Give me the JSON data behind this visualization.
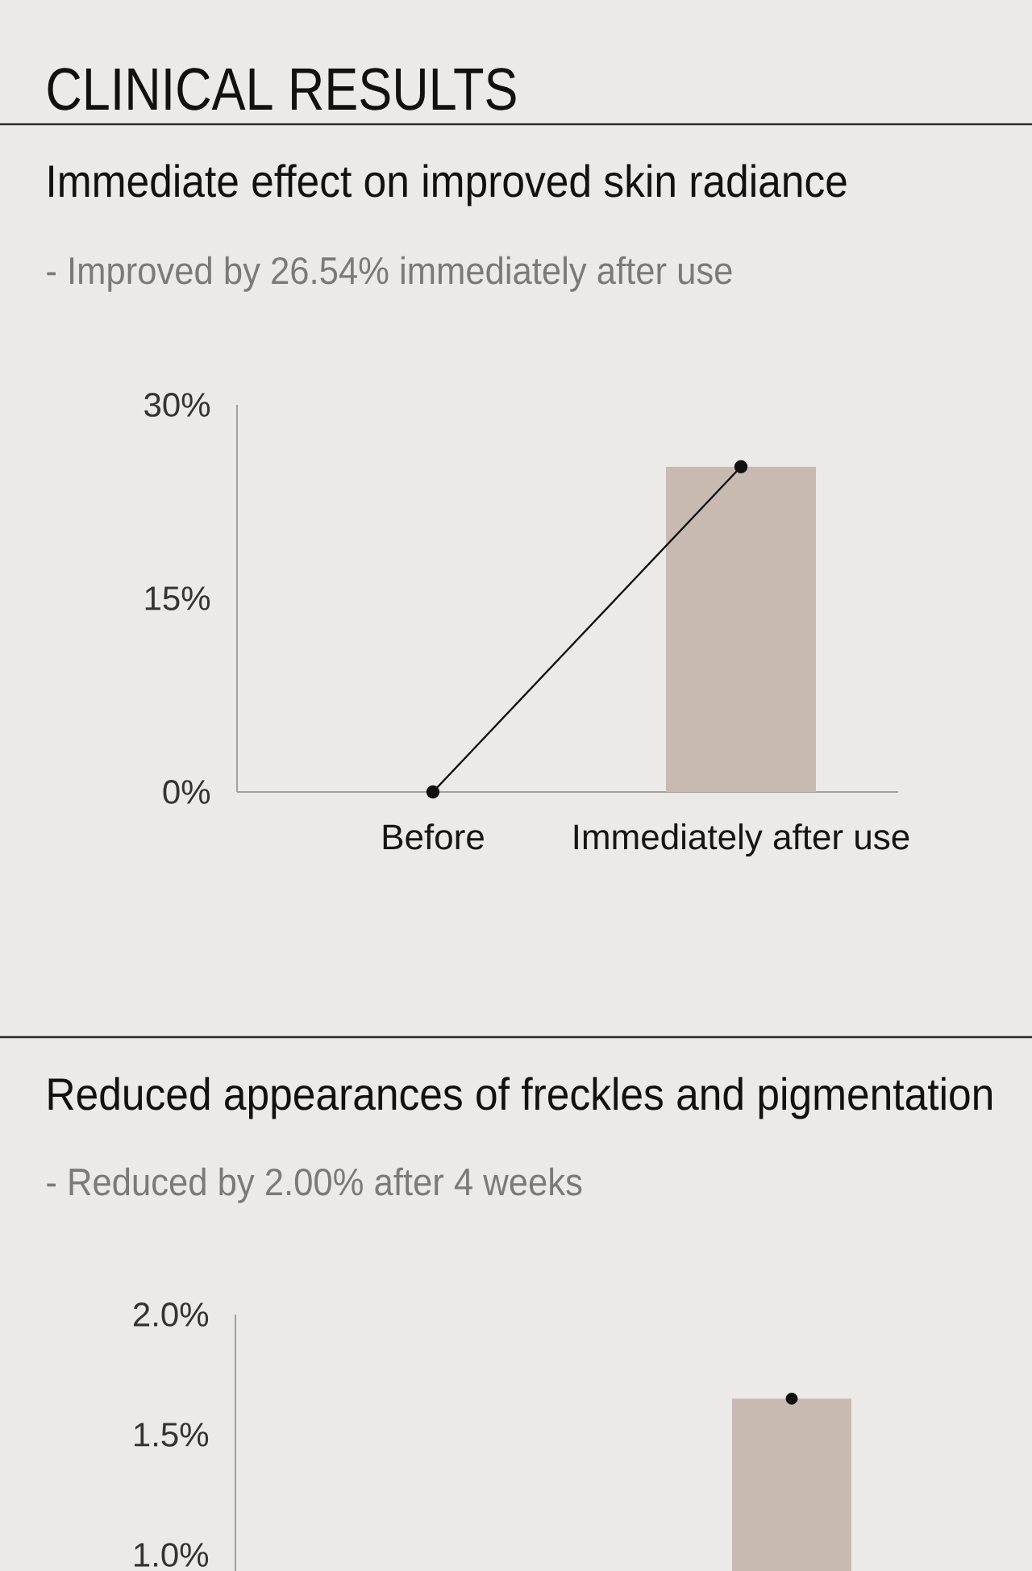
{
  "chart_data": [
    {
      "type": "other",
      "title": "CLINICAL RESULTS"
    },
    {
      "type": "bar",
      "title": "Immediate effect on improved skin radiance",
      "subtitle": "- Improved by 26.54% immediately after use",
      "categories": [
        "Before",
        "Immediately after use"
      ],
      "series": [
        {
          "type": "bar",
          "color": "#c9bab1",
          "values": [
            0,
            25.2
          ]
        },
        {
          "type": "line",
          "color": "#111111",
          "marker": "circle",
          "values": [
            0,
            25.2
          ]
        }
      ],
      "ylim": [
        0,
        30
      ],
      "yticks": [
        {
          "value": 0,
          "label": "0%"
        },
        {
          "value": 15,
          "label": "15%"
        },
        {
          "value": 30,
          "label": "30%"
        }
      ]
    },
    {
      "type": "bar",
      "title": "Reduced appearances of freckles and pigmentation",
      "subtitle": "- Reduced by 2.00% after 4 weeks",
      "categories": [
        null,
        null
      ],
      "series": [
        {
          "type": "bar",
          "color": "#c9bab1",
          "values": [
            null,
            1.65
          ]
        },
        {
          "type": "scatter",
          "color": "#111111",
          "marker": "circle",
          "values": [
            null,
            1.65
          ]
        }
      ],
      "ylim": [
        0.93,
        2.0
      ],
      "yticks": [
        {
          "value": 1.0,
          "label": "1.0%"
        },
        {
          "value": 1.5,
          "label": "1.5%"
        },
        {
          "value": 2.0,
          "label": "2.0%"
        }
      ],
      "tick_labels": "y"
    }
  ]
}
